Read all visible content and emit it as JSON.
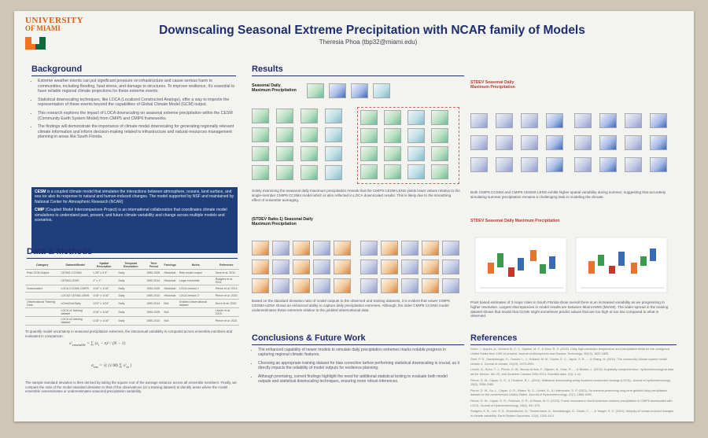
{
  "logo": {
    "line1": "UNIVERSITY",
    "line2": "OF MIAMI"
  },
  "title": "Downscaling Seasonal Extreme Precipitation with NCAR family of Models",
  "author": "Theresia Phoa (tbp32@miami.edu)",
  "background": {
    "heading": "Background",
    "bullets": [
      "Extreme weather events can put significant pressure on infrastructure and cause serious harm to communities, including flooding, heat stress, and damage to structures. To improve resilience, it's essential to have reliable regional climate projections for these extreme events.",
      "Statistical downscaling techniques, like LOCA (Localized Constructed Analogs), offer a way to improve the representation of these events beyond the capabilities of Global Climate Model (GCM) output.",
      "This research explores the impact of LOCA downscaling on seasonal extreme precipitation within the CESM (Community Earth System Model) from CMIP5 and CMIP6 frameworks.",
      "The findings will demonstrate the importance of climate model downscaling for generating regionally relevant climate information and inform decision-making related to infrastructure and natural-resources management planning in areas like South Florida."
    ],
    "cesm_label": "CESM",
    "cesm_text": "is a coupled climate model that simulates the interactions between atmosphere, oceans, land surface, and sea ice also its response to natural and human-induced changes. The model supported by NSF and maintained by National Center for Atmospheric Research (NCAR)",
    "cmip_label": "CMIP",
    "cmip_text": "(Coupled Model Intercomparison Project) is an international collaboration that coordinates climate model simulations to understand past, present, and future climate variability and change across multiple models and scenarios."
  },
  "data_methods": {
    "heading": "Data & Methods",
    "columns": [
      "Category",
      "Dataset/Model",
      "Spatial Resolution",
      "Temporal Resolution",
      "Time Period",
      "Forcings",
      "Notes",
      "Reference"
    ],
    "rows": [
      [
        "Raw GCM Output",
        "CESM1-CCSM4",
        "1.25° x 0.9°",
        "Daily",
        "1950-2005",
        "Historical",
        "Raw model output",
        "Gent et al. 2011"
      ],
      [
        "",
        "CESM2-LENS",
        "1° x 1°",
        "Daily",
        "1950-2014",
        "Historical",
        "Large ensemble",
        "Rodgers et al. 2021"
      ],
      [
        "Downscaled",
        "LOCA CCSM4-CMIP5",
        "1/16° x 1/16°",
        "Daily",
        "1950-2005",
        "Historical",
        "LOCA version 1",
        "Pierce et al. 2014"
      ],
      [
        "",
        "LOCA2 CESM2-LENS",
        "1/16° x 1/16°",
        "Daily",
        "1950-2014",
        "Historical",
        "LOCA version 2",
        "Pierce et al. 2023"
      ],
      [
        "Observational Training Data",
        "nClimGrid-Daily",
        "1/24° x 1/24°",
        "Daily",
        "1950-2014",
        "N/A",
        "Gridded observational dataset",
        "Durre et al. 2022"
      ],
      [
        "",
        "LOCA v1 training dataset",
        "1/16° x 1/16°",
        "Daily",
        "1950-2005",
        "N/A",
        "",
        "Livneh et al. 2015"
      ],
      [
        "",
        "LOCA v2 training dataset",
        "1/16° x 1/16°",
        "Daily",
        "1950-2014",
        "N/A",
        "",
        "Pierce et al. 2021"
      ]
    ],
    "method_text": "To quantify model uncertainty in seasonal precipitation extremes, the interannual variability is computed across ensemble members and evaluated in comparison.",
    "stdev_text": "The sample standard deviation is then derived by taking the square root of the average variance across all ensemble members. Finally, we compare the ratio of the model standard deviation to that of the observations (or a training dataset) to identify areas where the model ensemble overestimates or underestimates seasonal precipitation variability."
  },
  "results": {
    "heading": "Results",
    "panel1_label": "Seasonal Daily Maximum Precipitation",
    "panel1_caption": "Solely examining the seasonal daily maximum precipitation reveals that the CMIP6 CESM-LENS yields lower values relative to the single-member CMIP5 CCSM4 model which is also reflected in LOCA downscaled results. This is likely due to the smoothing effect of ensemble averaging.",
    "panel2_label": "STDEV Seasonal Daily Maximum Precipitation",
    "panel2_caption": "Both CMIP5 CCSM4 and CMIP6 CESM2-LENS exhibit higher spatial variability during summer, suggesting that accurately simulating summer precipitation remains a challenging task in modeling the climate.",
    "panel3_label": "(STDEV Ratio-1) Seasonal Daily Maximum Precipitation",
    "panel3_caption": "Based on the standard deviation ratio of model outputs to the observed and training datasets, it is evident that newer CMIP6 CESM2-LENS shows an enhanced ability to capture daily precipitation extremes. Although, the older CMIP5 CCSM4 model underestimates these extremes relative to the gridded observational data.",
    "panel4_label": "STDEV Seasonal Daily Maximum Precipitation",
    "panel4_caption": "Point based estimates of 3 major cities in South Florida show overall there is an increased variability as we progressing to higher resolution. Largest discrepancies in model results are between Miami-NWS (MIAMI). The wider spread in the training dataset shows that model that GCMs might sometimes predict values that are too high or too low compared to what is observed."
  },
  "conclusions": {
    "heading": "Conclusions & Future Work",
    "bullets": [
      "The enhanced capability of newer models to simulate daily precipitation extremes marks notable progress in capturing regional climatic features.",
      "Choosing an appropriate training dataset for bias correction before performing statistical downscaling is crucial, as it directly impacts the reliability of model outputs for resilience planning.",
      "Although promising, current findings highlight the need for additional statistical testing to evaluate both model outputs and statistical downscaling techniques, ensuring more robust inferences."
    ]
  },
  "references": {
    "heading": "References",
    "items": [
      "Durre, I., Arguez, A., Schreck III, C. J., Squires, M. F., & Vose, R. S. (2022). Daily high-resolution temperature and precipitation fields for the contiguous United States from 1951 to present. Journal of Atmospheric and Oceanic Technology, 39(12), 1837-1855.",
      "Gent, P. R., Danabasoglu, G., Donner, L. J., Holland, M. M., Hunke, E. C., Jayne, S. R., ... & Zhang, M. (2011). The community climate system model version 4. Journal of climate, 24(19), 4973-4991.",
      "Livneh, B., Bohn, T. J., Pierce, D. W., Munoz-Arriola, F., Nijssen, B., Vose, R., ... & Brekke, L. (2015). A spatially comprehensive, hydrometeorological data set for Mexico, the US, and Southern Canada 1950-2013. Scientific data, 2(1), 1-12.",
      "Pierce, D. W., Cayan, D. R., & Thrasher, B. L. (2014). Statistical downscaling using localized constructed analogs (LOCA). Journal of hydrometeorology, 15(6), 2558-2585.",
      "Pierce, D. W., Su, L., Cayan, D. R., Risser, M. D., Livneh, B., & Lettenmaier, D. P. (2021). An extreme-preserving long-term gridded daily precipitation dataset for the conterminous United States. Journal of Hydrometeorology, 22(7), 1883-1895.",
      "Pierce, D. W., Cayan, D. R., Feldman, D. R., & Risser, M. D. (2023). Future increases in North American extreme precipitation in CMIP6 downscaled with LOCA. Journal of Hydrometeorology, 24(5), 951-975.",
      "Rodgers, K. B., Lee, S. S., Rosenbloom, N., Timmermann, A., Danabasoglu, G., Deser, C., ... & Yeager, S. G. (2021). Ubiquity of human-induced changes in climate variability. Earth System Dynamics, 12(4), 1393-1411."
    ]
  },
  "colors": {
    "navy": "#1f2f6e",
    "orange": "#e06010",
    "green": "#0b6b3a"
  }
}
